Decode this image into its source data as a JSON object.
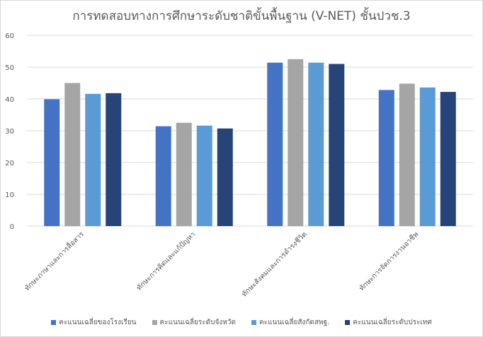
{
  "chart_data": {
    "type": "bar",
    "title": "การทดสอบทางการศึกษาระดับชาติขั้นพื้นฐาน (V-NET) ชั้นปวช.3",
    "categories": [
      "ทักษะภาษาและการสื่อสาร",
      "ทักษะการคิดและแก้ปัญหา",
      "ทักษะสังคมและการดำรงชีวิต",
      "ทักษะการจัดการงานอาชีพ"
    ],
    "series": [
      {
        "name": "คะแนนเฉลี่ยของโรงเรียน",
        "color": "#4472c4",
        "values": [
          39.9,
          31.4,
          51.4,
          42.8
        ]
      },
      {
        "name": "คะแนนเฉลี่ยระดับจังหวัด",
        "color": "#a5a5a5",
        "values": [
          45.0,
          32.5,
          52.5,
          44.8
        ]
      },
      {
        "name": "คะแนนเฉลี่ยสังกัดสพฐ.",
        "color": "#5b9bd5",
        "values": [
          41.6,
          31.6,
          51.4,
          43.6
        ]
      },
      {
        "name": "คะแนนเฉลี่ยระดับประเทศ",
        "color": "#264478",
        "values": [
          41.8,
          30.7,
          51.0,
          42.2
        ]
      }
    ],
    "ylim": [
      0,
      60
    ],
    "yticks": [
      "0",
      "10",
      "20",
      "30",
      "40",
      "50",
      "60"
    ],
    "grid": true,
    "legend": "bottom",
    "xlabel": "",
    "ylabel": ""
  }
}
